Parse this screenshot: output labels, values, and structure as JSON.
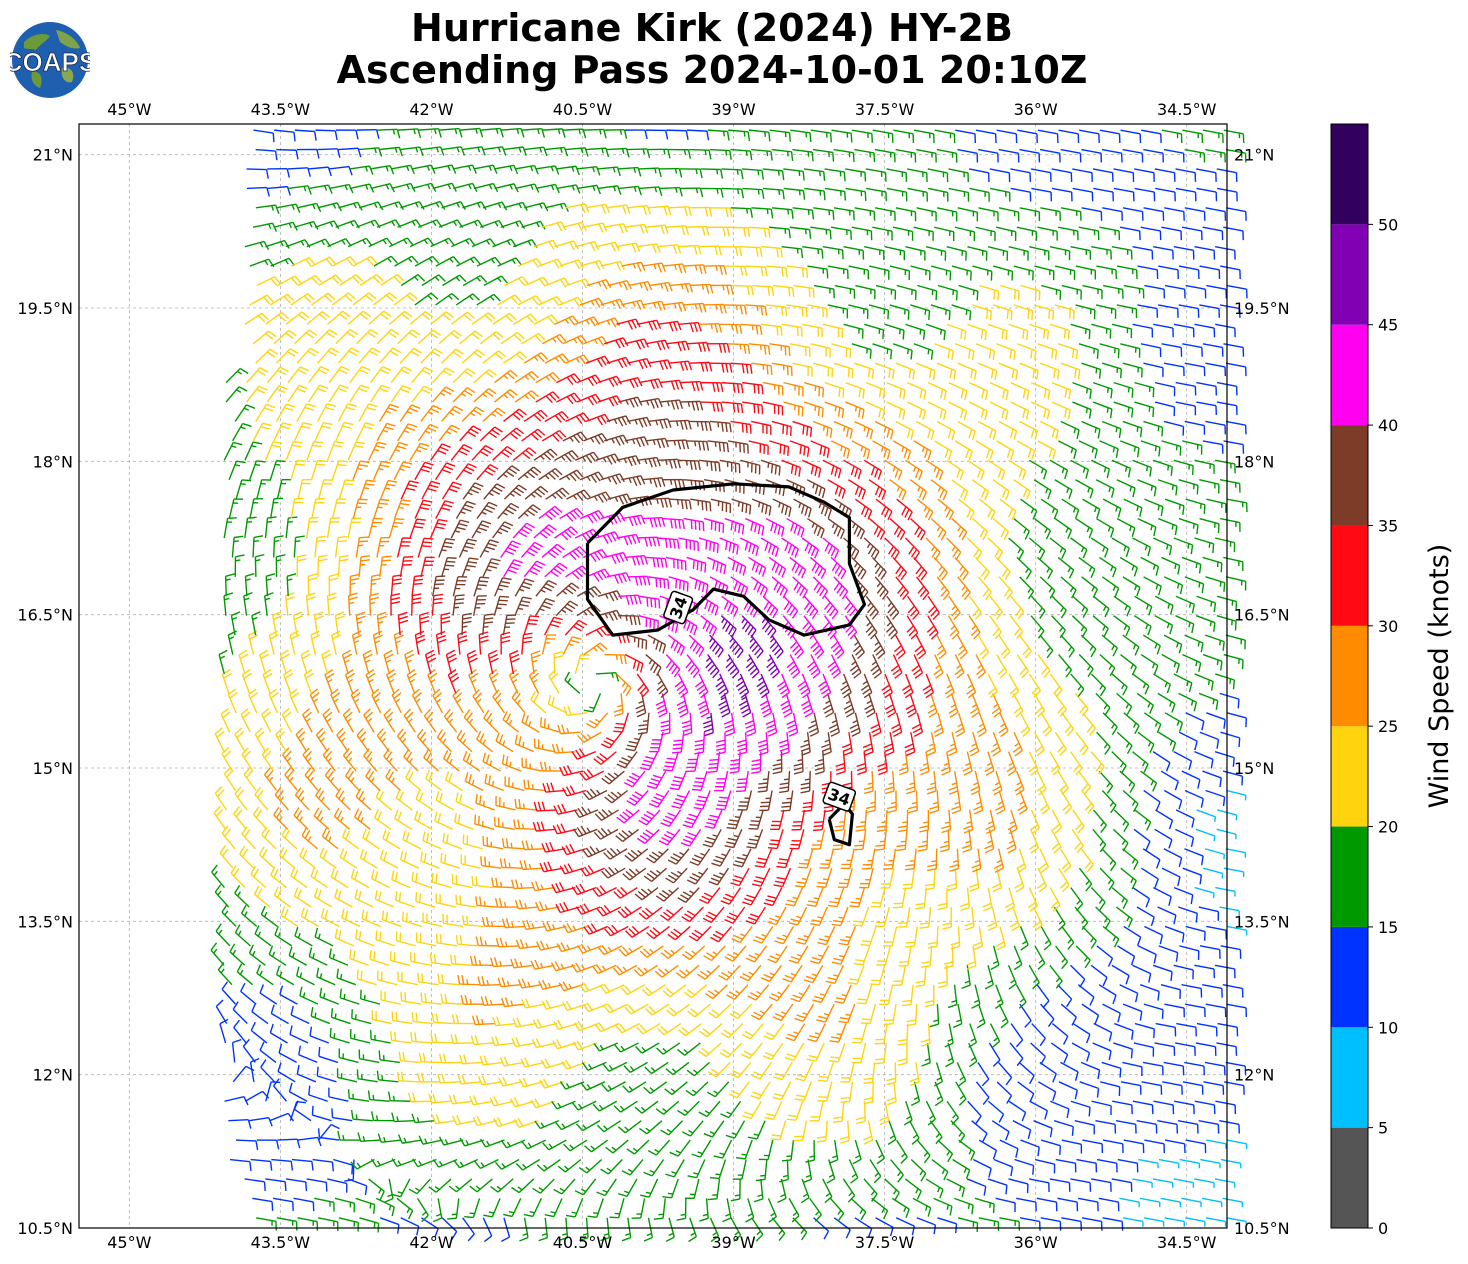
{
  "title": {
    "line1": "Hurricane Kirk (2024) HY-2B",
    "line2": "Ascending Pass 2024-10-01 20:10Z"
  },
  "logo": {
    "text": "COAPS",
    "icon": "globe-icon"
  },
  "map": {
    "lon_range": [
      -45.5,
      -34.1
    ],
    "lat_range": [
      10.5,
      21.3
    ],
    "lon_ticks": [
      {
        "value": -45.0,
        "label": "45°W"
      },
      {
        "value": -43.5,
        "label": "43.5°W"
      },
      {
        "value": -42.0,
        "label": "42°W"
      },
      {
        "value": -40.5,
        "label": "40.5°W"
      },
      {
        "value": -39.0,
        "label": "39°W"
      },
      {
        "value": -37.5,
        "label": "37.5°W"
      },
      {
        "value": -36.0,
        "label": "36°W"
      },
      {
        "value": -34.5,
        "label": "34.5°W"
      }
    ],
    "lat_ticks": [
      {
        "value": 21.0,
        "label": "21°N"
      },
      {
        "value": 19.5,
        "label": "19.5°N"
      },
      {
        "value": 18.0,
        "label": "18°N"
      },
      {
        "value": 16.5,
        "label": "16.5°N"
      },
      {
        "value": 15.0,
        "label": "15°N"
      },
      {
        "value": 13.5,
        "label": "13.5°N"
      },
      {
        "value": 12.0,
        "label": "12°N"
      },
      {
        "value": 10.5,
        "label": "10.5°N"
      }
    ],
    "grid": true,
    "storm_center": {
      "lon": -40.4,
      "lat": 15.8
    },
    "contour_34kt": {
      "label": "34",
      "main": [
        [
          -40.45,
          17.2
        ],
        [
          -40.1,
          17.55
        ],
        [
          -39.6,
          17.72
        ],
        [
          -39.0,
          17.78
        ],
        [
          -38.45,
          17.75
        ],
        [
          -38.1,
          17.6
        ],
        [
          -37.85,
          17.45
        ],
        [
          -37.85,
          17.0
        ],
        [
          -37.7,
          16.6
        ],
        [
          -37.85,
          16.4
        ],
        [
          -38.3,
          16.3
        ],
        [
          -38.65,
          16.45
        ],
        [
          -38.9,
          16.68
        ],
        [
          -39.2,
          16.75
        ],
        [
          -39.4,
          16.55
        ],
        [
          -39.75,
          16.35
        ],
        [
          -40.2,
          16.3
        ],
        [
          -40.45,
          16.65
        ],
        [
          -40.45,
          17.2
        ]
      ],
      "small": [
        [
          -38.05,
          14.5
        ],
        [
          -38.0,
          14.3
        ],
        [
          -37.85,
          14.25
        ],
        [
          -37.82,
          14.55
        ],
        [
          -37.9,
          14.65
        ],
        [
          -38.05,
          14.5
        ]
      ],
      "label_positions": [
        {
          "lon": -39.55,
          "lat": 16.57,
          "angle": -70
        },
        {
          "lon": -37.95,
          "lat": 14.72,
          "angle": 20
        }
      ]
    }
  },
  "colorbar": {
    "title": "Wind Speed (knots)",
    "levels": [
      0,
      5,
      10,
      15,
      20,
      25,
      30,
      35,
      40,
      45,
      50,
      55
    ],
    "colors": [
      "#555555",
      "#00bfff",
      "#0033ff",
      "#009a00",
      "#ffd40e",
      "#ff8c00",
      "#ff0a14",
      "#7d3c28",
      "#ff00f0",
      "#8200b4",
      "#32005f"
    ],
    "labels": [
      "0",
      "5",
      "10",
      "15",
      "20",
      "25",
      "30",
      "35",
      "40",
      "45",
      "50"
    ]
  }
}
